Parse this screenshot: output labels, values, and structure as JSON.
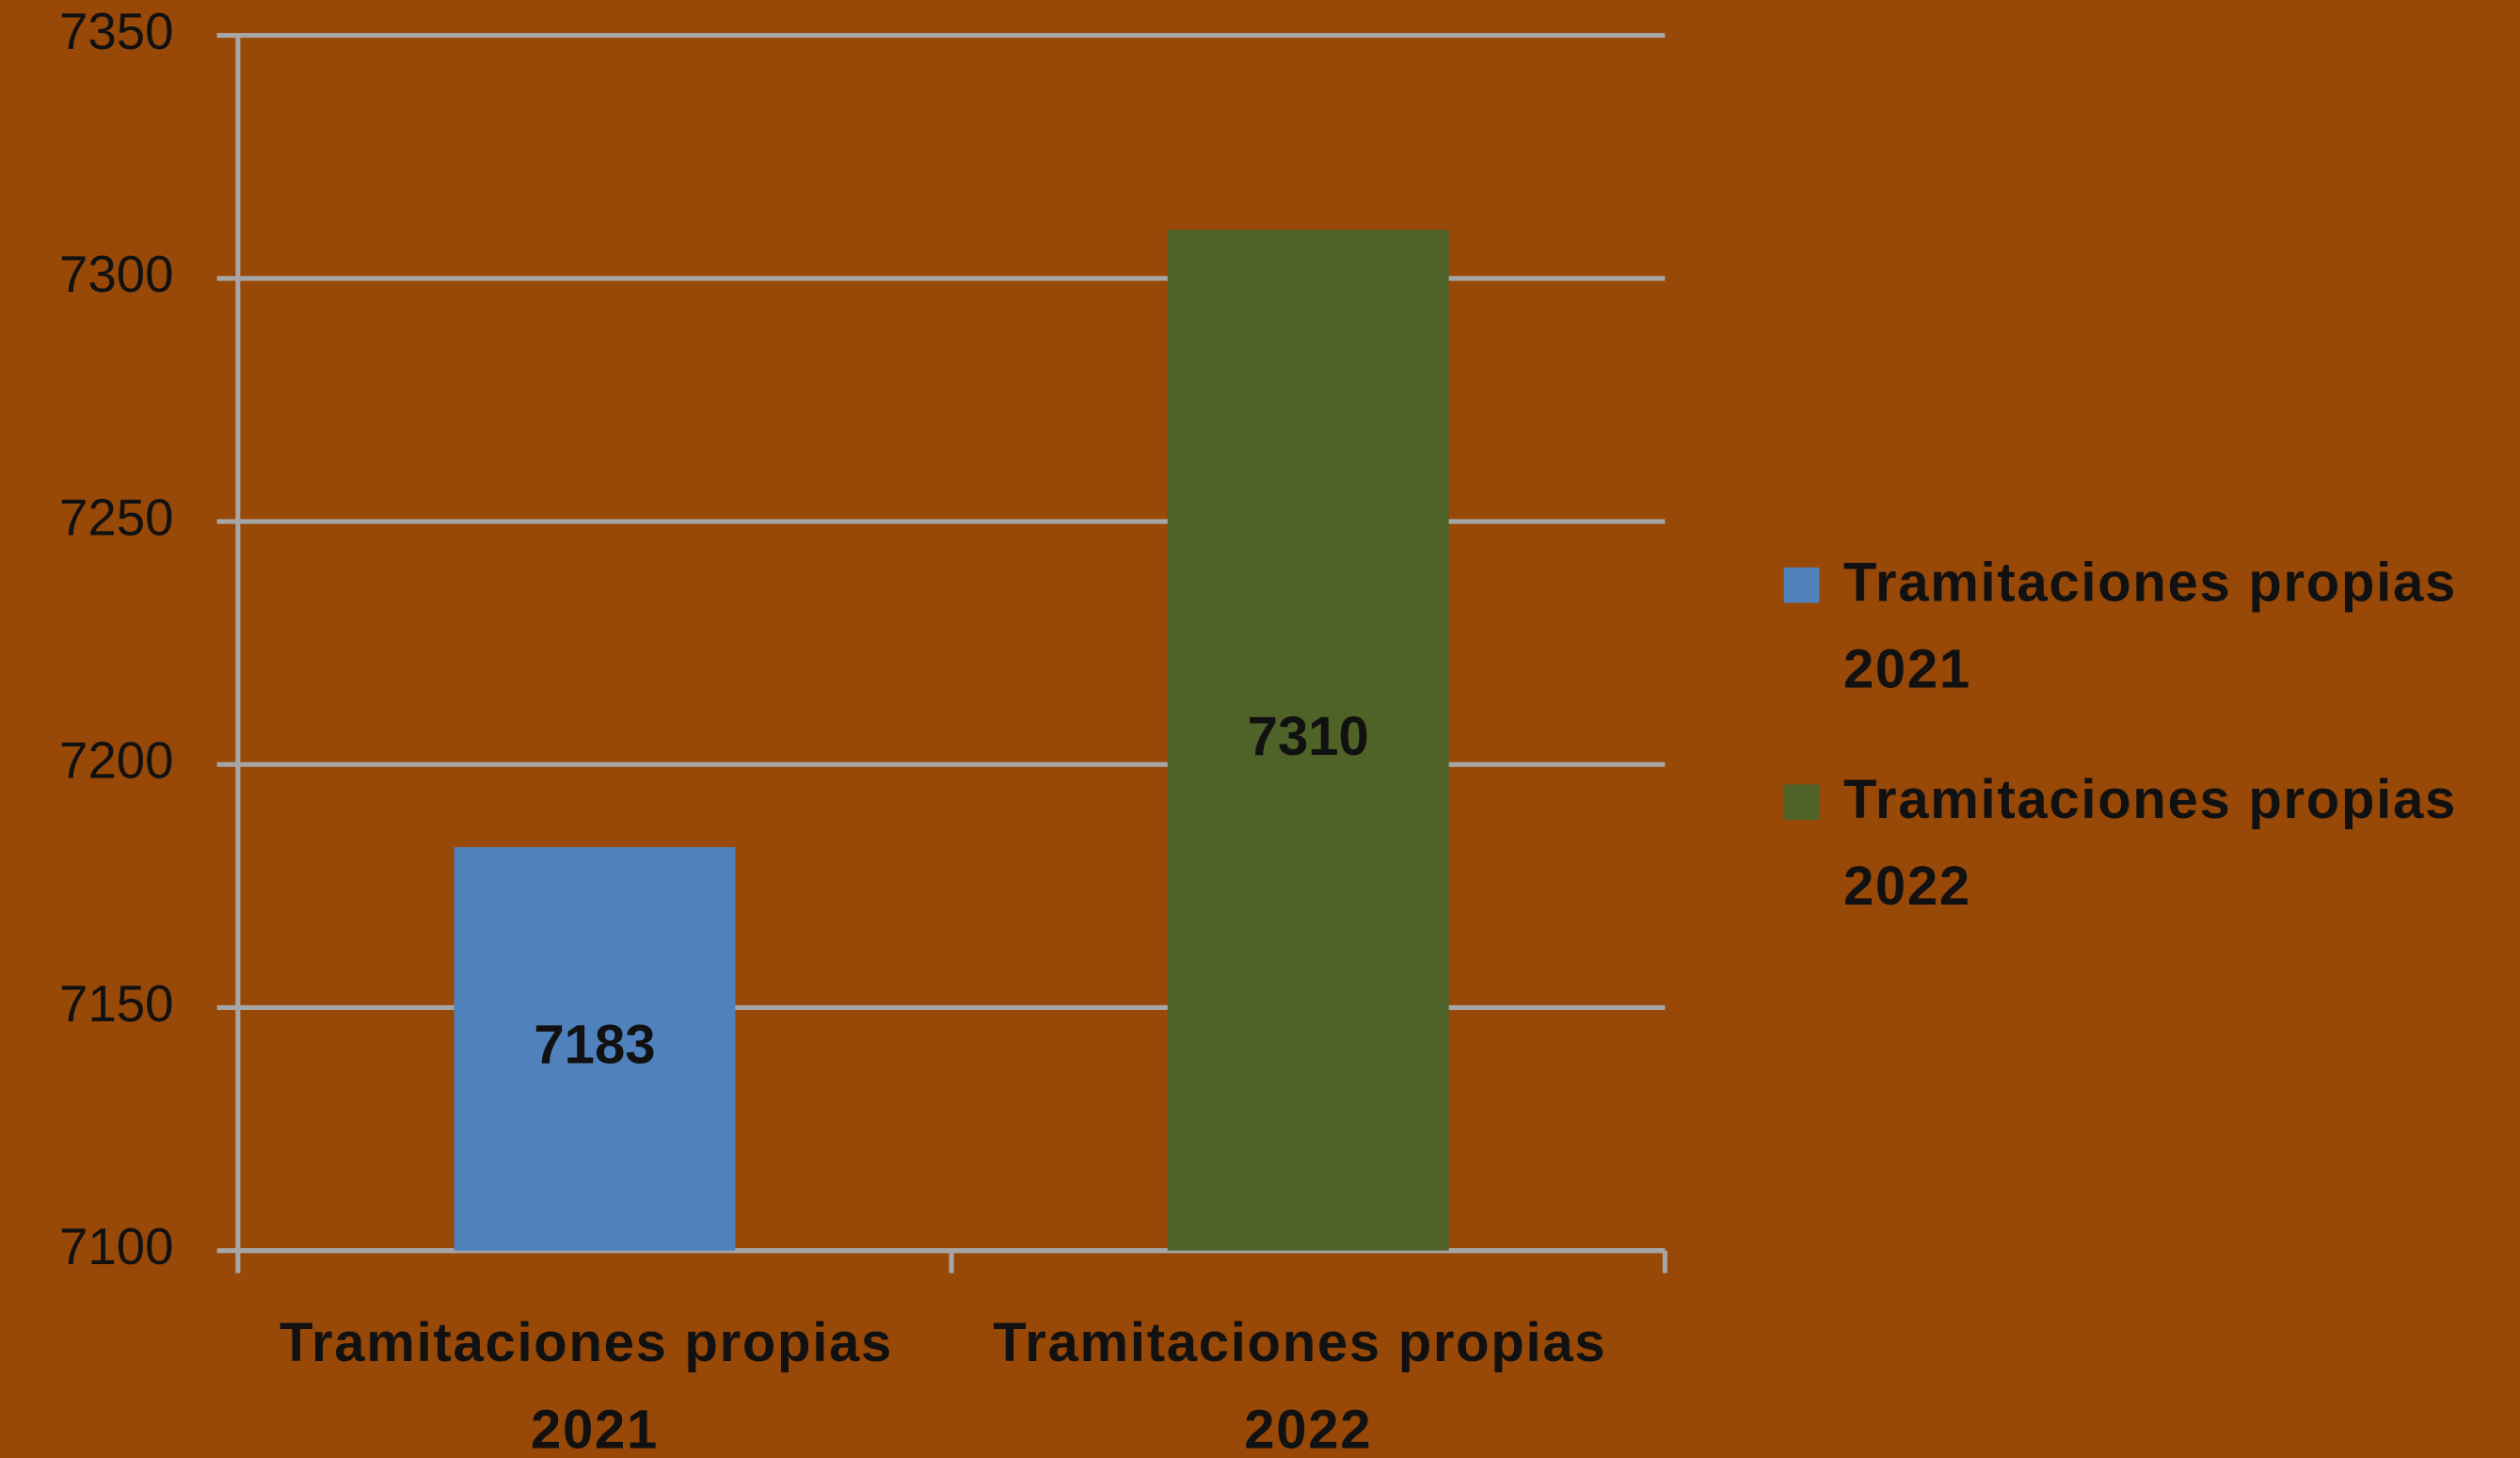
{
  "chart_data": {
    "type": "bar",
    "categories": [
      "Tramitaciones propias 2021",
      "Tramitaciones propias 2022"
    ],
    "series": [
      {
        "name": "Tramitaciones propias 2021",
        "color": "#4f81bd",
        "values": [
          7183,
          null
        ]
      },
      {
        "name": "Tramitaciones propias 2022",
        "color": "#4f6228",
        "values": [
          null,
          7310
        ]
      }
    ],
    "ylim": [
      7100,
      7350
    ],
    "yticks": [
      7100,
      7150,
      7200,
      7250,
      7300,
      7350
    ],
    "grid": true,
    "legend": "right"
  }
}
